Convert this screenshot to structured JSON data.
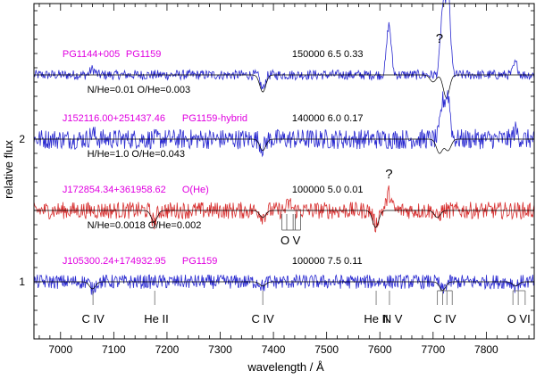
{
  "chart_data": {
    "type": "line",
    "xlabel": "wavelength / Å",
    "ylabel": "relative flux",
    "xlim": [
      6950,
      7890
    ],
    "ylim": [
      0.6,
      2.95
    ],
    "x_ticks": [
      7000,
      7100,
      7200,
      7300,
      7400,
      7500,
      7600,
      7700,
      7800
    ],
    "y_ticks": [
      1,
      2
    ],
    "colors": {
      "magenta": "#e000e0",
      "blue": "#2a2ad0",
      "red": "#d83030",
      "model": "#000000",
      "axis": "#000000"
    },
    "spectra": [
      {
        "id": "PG1144",
        "name": "PG1144+005",
        "class": "PG1159",
        "params": "150000  6.5  0.33",
        "abundances": "N/He=0.01  O/He=0.003",
        "offset": 2.45,
        "color": "blue",
        "lines": [
          [
            7060,
            0.04
          ],
          [
            7380,
            -0.1
          ],
          [
            7617,
            0.35
          ],
          [
            7718,
            0.45
          ],
          [
            7728,
            0.6
          ],
          [
            7855,
            0.08
          ]
        ],
        "model_lines": [
          [
            7380,
            -0.12
          ],
          [
            7725,
            -0.16
          ],
          [
            7700,
            -0.05
          ]
        ],
        "question_mark_at": 7712
      },
      {
        "id": "J1521",
        "name": "J152116.00+251437.46",
        "class": "PG1159-hybrid",
        "params": "140000  6.0  0.17",
        "abundances": "H/He=1.0  O/He=0.043",
        "offset": 2.0,
        "color": "blue",
        "lines": [
          [
            7060,
            0.04
          ],
          [
            7380,
            -0.06
          ],
          [
            7718,
            0.25
          ],
          [
            7728,
            0.3
          ],
          [
            7855,
            0.06
          ]
        ],
        "model_lines": [
          [
            7380,
            -0.08
          ],
          [
            7712,
            -0.1
          ],
          [
            7728,
            -0.08
          ]
        ]
      },
      {
        "id": "J1728",
        "name": "J172854.34+361958.62",
        "class": "O(He)",
        "params": "100000  5.0  0.01",
        "abundances": "N/He=0.0018  O/He=0.002",
        "offset": 1.5,
        "color": "red",
        "lines": [
          [
            7176,
            -0.08
          ],
          [
            7380,
            -0.04
          ],
          [
            7592,
            -0.1
          ],
          [
            7617,
            0.12
          ],
          [
            7430,
            0.05
          ],
          [
            7708,
            -0.05
          ]
        ],
        "model_lines": [
          [
            7176,
            -0.08
          ],
          [
            7380,
            -0.05
          ],
          [
            7592,
            -0.12
          ],
          [
            7708,
            -0.05
          ]
        ],
        "question_mark_at": 7617
      },
      {
        "id": "J1053",
        "name": "J105300.24+174932.95",
        "class": "PG1159",
        "params": "100000  7.5  0.11",
        "abundances": "",
        "offset": 1.0,
        "color": "blue",
        "lines": [
          [
            7060,
            -0.05
          ],
          [
            7380,
            -0.03
          ],
          [
            7718,
            -0.06
          ],
          [
            7855,
            -0.03
          ]
        ],
        "model_lines": [
          [
            7060,
            -0.05
          ],
          [
            7380,
            -0.03
          ],
          [
            7718,
            -0.06
          ],
          [
            7855,
            -0.03
          ]
        ]
      }
    ],
    "question_mark": "?",
    "ov_group": {
      "label": "O V",
      "wavelengths": [
        7416,
        7425,
        7437,
        7441,
        7451
      ]
    },
    "line_identifications": [
      {
        "label": "C IV",
        "ticks": [
          7061
        ],
        "label_x": 7061
      },
      {
        "label": "He II",
        "ticks": [
          7177
        ],
        "label_x": 7180
      },
      {
        "label": "C IV",
        "ticks": [
          7380
        ],
        "label_x": 7380
      },
      {
        "label": "He II",
        "ticks": [
          7593
        ],
        "label_x": 7593
      },
      {
        "label": "N V",
        "ticks": [
          7618
        ],
        "label_x": 7624
      },
      {
        "label": "C IV",
        "ticks": [
          7708,
          7718,
          7726,
          7736
        ],
        "label_x": 7722
      },
      {
        "label": "O VI",
        "ticks": [
          7850,
          7860,
          7873
        ],
        "label_x": 7861
      }
    ]
  }
}
